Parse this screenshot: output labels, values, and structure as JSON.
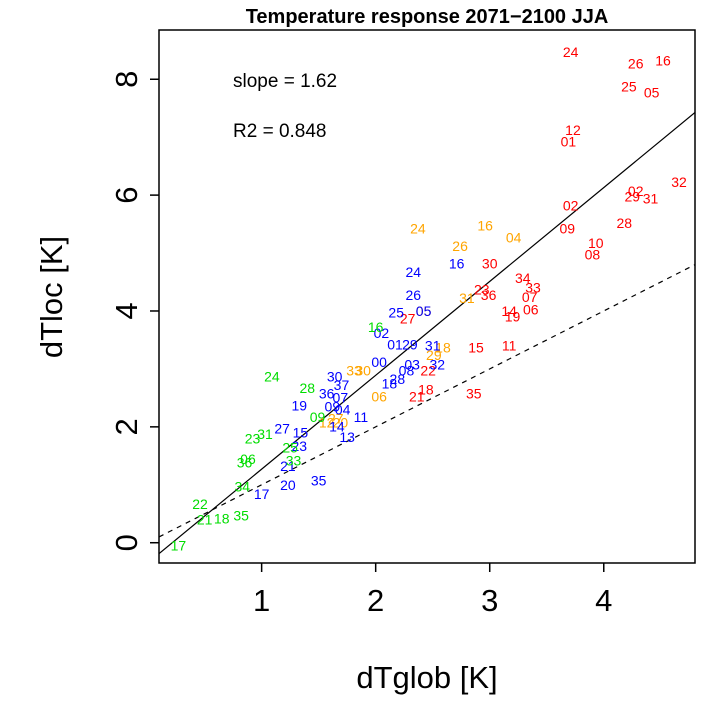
{
  "chart_data": {
    "type": "scatter",
    "title": "Temperature response 2071−2100 JJA",
    "xlabel": "dTglob [K]",
    "ylabel": "dTloc [K]",
    "xlim": [
      0.1,
      4.8
    ],
    "ylim": [
      -0.35,
      8.85
    ],
    "xticks": [
      1,
      2,
      3,
      4
    ],
    "yticks": [
      0,
      2,
      4,
      6,
      8
    ],
    "annotations": {
      "slope": "slope = 1.62",
      "r2": "R2 = 0.848"
    },
    "fit_line": {
      "slope": 1.62,
      "intercept": -0.35,
      "style": "solid"
    },
    "reference_line": {
      "slope": 1.0,
      "intercept": 0.0,
      "style": "dashed"
    },
    "colors": {
      "red": "#ff0000",
      "orange": "#ffa500",
      "blue": "#0000ff",
      "green": "#00dd00"
    },
    "series": [
      {
        "name": "red",
        "points": [
          {
            "label": "24",
            "x": 3.71,
            "y": 8.45
          },
          {
            "label": "26",
            "x": 4.28,
            "y": 8.25
          },
          {
            "label": "16",
            "x": 4.52,
            "y": 8.3
          },
          {
            "label": "25",
            "x": 4.22,
            "y": 7.85
          },
          {
            "label": "05",
            "x": 4.42,
            "y": 7.75
          },
          {
            "label": "12",
            "x": 3.73,
            "y": 7.1
          },
          {
            "label": "01",
            "x": 3.69,
            "y": 6.9
          },
          {
            "label": "32",
            "x": 4.66,
            "y": 6.2
          },
          {
            "label": "02",
            "x": 4.28,
            "y": 6.05
          },
          {
            "label": "29",
            "x": 4.25,
            "y": 5.95
          },
          {
            "label": "31",
            "x": 4.41,
            "y": 5.92
          },
          {
            "label": "02",
            "x": 3.71,
            "y": 5.8
          },
          {
            "label": "28",
            "x": 4.18,
            "y": 5.5
          },
          {
            "label": "09",
            "x": 3.68,
            "y": 5.4
          },
          {
            "label": "10",
            "x": 3.93,
            "y": 5.15
          },
          {
            "label": "08",
            "x": 3.9,
            "y": 4.95
          },
          {
            "label": "30",
            "x": 3.0,
            "y": 4.8
          },
          {
            "label": "34",
            "x": 3.29,
            "y": 4.55
          },
          {
            "label": "33",
            "x": 3.38,
            "y": 4.38
          },
          {
            "label": "23",
            "x": 2.93,
            "y": 4.35
          },
          {
            "label": "36",
            "x": 2.99,
            "y": 4.25
          },
          {
            "label": "07",
            "x": 3.35,
            "y": 4.22
          },
          {
            "label": "14",
            "x": 3.17,
            "y": 3.98
          },
          {
            "label": "06",
            "x": 3.36,
            "y": 4.0
          },
          {
            "label": "19",
            "x": 3.2,
            "y": 3.88
          },
          {
            "label": "27",
            "x": 2.28,
            "y": 3.85
          },
          {
            "label": "15",
            "x": 2.88,
            "y": 3.35
          },
          {
            "label": "11",
            "x": 3.17,
            "y": 3.38
          },
          {
            "label": "22",
            "x": 2.46,
            "y": 2.95
          },
          {
            "label": "18",
            "x": 2.44,
            "y": 2.62
          },
          {
            "label": "21",
            "x": 2.36,
            "y": 2.5
          },
          {
            "label": "35",
            "x": 2.86,
            "y": 2.55
          }
        ]
      },
      {
        "name": "orange",
        "points": [
          {
            "label": "24",
            "x": 2.37,
            "y": 5.4
          },
          {
            "label": "16",
            "x": 2.96,
            "y": 5.45
          },
          {
            "label": "04",
            "x": 3.21,
            "y": 5.25
          },
          {
            "label": "26",
            "x": 2.74,
            "y": 5.1
          },
          {
            "label": "31",
            "x": 2.8,
            "y": 4.2
          },
          {
            "label": "05",
            "x": 2.42,
            "y": 3.98
          },
          {
            "label": "18",
            "x": 2.59,
            "y": 3.35
          },
          {
            "label": "29",
            "x": 2.51,
            "y": 3.22
          },
          {
            "label": "33",
            "x": 1.81,
            "y": 2.95
          },
          {
            "label": "30",
            "x": 1.89,
            "y": 2.95
          },
          {
            "label": "06",
            "x": 2.03,
            "y": 2.5
          },
          {
            "label": "12",
            "x": 1.57,
            "y": 2.05
          },
          {
            "label": "27",
            "x": 1.65,
            "y": 2.12
          },
          {
            "label": "20",
            "x": 1.69,
            "y": 2.05
          }
        ]
      },
      {
        "name": "blue",
        "points": [
          {
            "label": "24",
            "x": 2.33,
            "y": 4.65
          },
          {
            "label": "16",
            "x": 2.71,
            "y": 4.8
          },
          {
            "label": "26",
            "x": 2.33,
            "y": 4.25
          },
          {
            "label": "05",
            "x": 2.42,
            "y": 3.98
          },
          {
            "label": "25",
            "x": 2.18,
            "y": 3.95
          },
          {
            "label": "02",
            "x": 2.05,
            "y": 3.6
          },
          {
            "label": "01",
            "x": 2.17,
            "y": 3.4
          },
          {
            "label": "29",
            "x": 2.3,
            "y": 3.4
          },
          {
            "label": "31",
            "x": 2.5,
            "y": 3.38
          },
          {
            "label": "00",
            "x": 2.03,
            "y": 3.1
          },
          {
            "label": "03",
            "x": 2.32,
            "y": 3.05
          },
          {
            "label": "32",
            "x": 2.54,
            "y": 3.05
          },
          {
            "label": "08",
            "x": 2.27,
            "y": 2.95
          },
          {
            "label": "28",
            "x": 2.19,
            "y": 2.8
          },
          {
            "label": "18",
            "x": 2.12,
            "y": 2.73
          },
          {
            "label": "30",
            "x": 1.64,
            "y": 2.85
          },
          {
            "label": "37",
            "x": 1.7,
            "y": 2.7
          },
          {
            "label": "36",
            "x": 1.57,
            "y": 2.55
          },
          {
            "label": "07",
            "x": 1.69,
            "y": 2.48
          },
          {
            "label": "19",
            "x": 1.33,
            "y": 2.35
          },
          {
            "label": "09",
            "x": 1.62,
            "y": 2.33
          },
          {
            "label": "04",
            "x": 1.71,
            "y": 2.28
          },
          {
            "label": "11",
            "x": 1.87,
            "y": 2.15
          },
          {
            "label": "14",
            "x": 1.66,
            "y": 1.98
          },
          {
            "label": "13",
            "x": 1.75,
            "y": 1.8
          },
          {
            "label": "27",
            "x": 1.18,
            "y": 1.95
          },
          {
            "label": "15",
            "x": 1.34,
            "y": 1.88
          },
          {
            "label": "23",
            "x": 1.33,
            "y": 1.65
          },
          {
            "label": "21",
            "x": 1.23,
            "y": 1.3
          },
          {
            "label": "35",
            "x": 1.5,
            "y": 1.05
          },
          {
            "label": "20",
            "x": 1.23,
            "y": 0.97
          },
          {
            "label": "17",
            "x": 1.0,
            "y": 0.82
          }
        ]
      },
      {
        "name": "green",
        "points": [
          {
            "label": "16",
            "x": 2.0,
            "y": 3.7
          },
          {
            "label": "24",
            "x": 1.09,
            "y": 2.85
          },
          {
            "label": "28",
            "x": 1.4,
            "y": 2.65
          },
          {
            "label": "09",
            "x": 1.49,
            "y": 2.15
          },
          {
            "label": "23",
            "x": 0.92,
            "y": 1.78
          },
          {
            "label": "31",
            "x": 1.03,
            "y": 1.85
          },
          {
            "label": "25",
            "x": 1.25,
            "y": 1.62
          },
          {
            "label": "33",
            "x": 1.28,
            "y": 1.4
          },
          {
            "label": "06",
            "x": 0.88,
            "y": 1.42
          },
          {
            "label": "36",
            "x": 0.85,
            "y": 1.36
          },
          {
            "label": "34",
            "x": 0.83,
            "y": 0.95
          },
          {
            "label": "22",
            "x": 0.46,
            "y": 0.65
          },
          {
            "label": "21",
            "x": 0.5,
            "y": 0.38
          },
          {
            "label": "18",
            "x": 0.65,
            "y": 0.4
          },
          {
            "label": "35",
            "x": 0.82,
            "y": 0.45
          },
          {
            "label": "17",
            "x": 0.27,
            "y": -0.07
          }
        ]
      }
    ]
  }
}
